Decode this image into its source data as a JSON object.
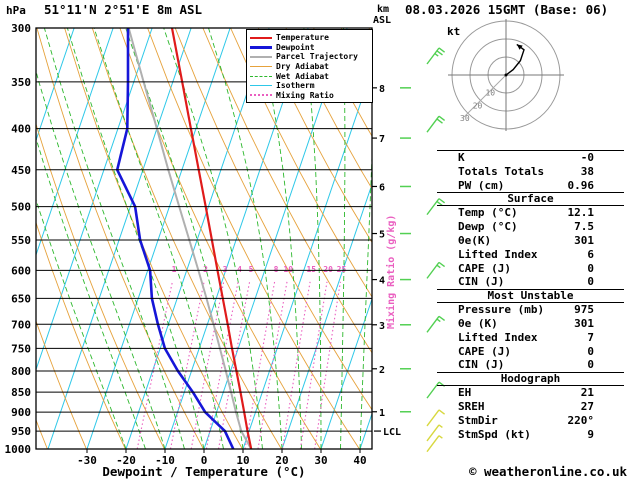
{
  "header": {
    "pressure_unit": "hPa",
    "station": "51°11'N 2°51'E 8m ASL",
    "height_km": "km",
    "height_asl": "ASL",
    "datetime": "08.03.2026 15GMT (Base: 06)"
  },
  "labels": {
    "mixing_axis": "Mixing Ratio (g/kg)",
    "x_axis": "Dewpoint / Temperature (°C)"
  },
  "footer": {
    "credit": "© weatheronline.co.uk"
  },
  "legend": {
    "items": [
      {
        "label": "Temperature",
        "color": "#e01b1b",
        "style": "solid",
        "width": 2
      },
      {
        "label": "Dewpoint",
        "color": "#1616d8",
        "style": "solid",
        "width": 3
      },
      {
        "label": "Parcel Trajectory",
        "color": "#b0b0b0",
        "style": "solid",
        "width": 2
      },
      {
        "label": "Dry Adiabat",
        "color": "#e6a23c",
        "style": "solid",
        "width": 1
      },
      {
        "label": "Wet Adiabat",
        "color": "#2db82d",
        "style": "dashed",
        "width": 1
      },
      {
        "label": "Isotherm",
        "color": "#2ec8e8",
        "style": "solid",
        "width": 1
      },
      {
        "label": "Mixing Ratio",
        "color": "#ea5fc0",
        "style": "dotted",
        "width": 2
      }
    ]
  },
  "stats": {
    "rows": [
      {
        "label": "K",
        "value": "-0"
      },
      {
        "label": "Totals Totals",
        "value": "38"
      },
      {
        "label": "PW (cm)",
        "value": "0.96"
      },
      {
        "header": "Surface"
      },
      {
        "label": "Temp (°C)",
        "value": "12.1"
      },
      {
        "label": "Dewp (°C)",
        "value": "7.5"
      },
      {
        "label": "θe(K)",
        "value": "301"
      },
      {
        "label": "Lifted Index",
        "value": "6"
      },
      {
        "label": "CAPE (J)",
        "value": "0"
      },
      {
        "label": "CIN (J)",
        "value": "0"
      },
      {
        "header": "Most Unstable"
      },
      {
        "label": "Pressure (mb)",
        "value": "975"
      },
      {
        "label": "θe (K)",
        "value": "301"
      },
      {
        "label": "Lifted Index",
        "value": "7"
      },
      {
        "label": "CAPE (J)",
        "value": "0"
      },
      {
        "label": "CIN (J)",
        "value": "0"
      },
      {
        "header": "Hodograph"
      },
      {
        "label": "EH",
        "value": "21"
      },
      {
        "label": "SREH",
        "value": "27"
      },
      {
        "label": "StmDir",
        "value": "220°"
      },
      {
        "label": "StmSpd (kt)",
        "value": "9"
      }
    ]
  },
  "chart_data": {
    "type": "skewt-log-p-sounding",
    "title": "51°11'N 2°51'E 8m ASL",
    "valid": "08.03.2026 15GMT (Base: 06)",
    "pressure_ticks_hpa": [
      300,
      350,
      400,
      450,
      500,
      550,
      600,
      650,
      700,
      750,
      800,
      850,
      900,
      950,
      1000
    ],
    "temp_ticks_c": [
      -30,
      -20,
      -10,
      0,
      10,
      20,
      30,
      40
    ],
    "km_ticks": [
      1,
      2,
      3,
      4,
      5,
      6,
      7,
      8
    ],
    "km_pressures": {
      "1": 899,
      "2": 795,
      "3": 701,
      "4": 616,
      "5": 540,
      "6": 472,
      "7": 411,
      "8": 356
    },
    "mixing_ratio_gkg": [
      1,
      2,
      3,
      4,
      5,
      8,
      10,
      15,
      20,
      25
    ],
    "sounding": {
      "pressure_hpa": [
        1000,
        950,
        900,
        850,
        800,
        750,
        700,
        650,
        600,
        550,
        500,
        450,
        400,
        350,
        300
      ],
      "temperature_c": [
        12.1,
        9.6,
        7.1,
        4.4,
        1.5,
        -1.6,
        -4.8,
        -8.3,
        -12.1,
        -16.2,
        -20.7,
        -25.7,
        -31.3,
        -37.6,
        -44.9
      ],
      "dewpoint_c": [
        7.5,
        3.8,
        -2.9,
        -7.8,
        -13.5,
        -18.8,
        -22.7,
        -26.5,
        -29.4,
        -34.6,
        -38.8,
        -46.6,
        -47.6,
        -51.5,
        -56.2
      ],
      "parcel_c": [
        12.1,
        8.0,
        5.0,
        2.0,
        -1.2,
        -4.7,
        -8.4,
        -12.5,
        -17.0,
        -22.0,
        -27.5,
        -33.5,
        -40.0,
        -47.5,
        -56.0
      ]
    },
    "lcl": {
      "pressure_hpa": 950,
      "label": "LCL"
    },
    "wind_barbs": [
      {
        "pressure_hpa": 325,
        "kt": 25,
        "color": "green"
      },
      {
        "pressure_hpa": 395,
        "kt": 20,
        "color": "green"
      },
      {
        "pressure_hpa": 500,
        "kt": 20,
        "color": "green"
      },
      {
        "pressure_hpa": 600,
        "kt": 15,
        "color": "green"
      },
      {
        "pressure_hpa": 700,
        "kt": 15,
        "color": "green"
      },
      {
        "pressure_hpa": 845,
        "kt": 10,
        "color": "green"
      },
      {
        "pressure_hpa": 915,
        "kt": 10,
        "color": "yellow"
      },
      {
        "pressure_hpa": 955,
        "kt": 9,
        "color": "yellow"
      },
      {
        "pressure_hpa": 985,
        "kt": 9,
        "color": "yellow"
      }
    ],
    "hodograph": {
      "unit": "kt",
      "rings_kt": [
        10,
        20,
        30
      ],
      "trace_u_kt": [
        0,
        4,
        8,
        10,
        6
      ],
      "trace_v_kt": [
        0,
        3,
        8,
        14,
        17
      ]
    },
    "colors": {
      "temperature": "#e01b1b",
      "dewpoint": "#1616d8",
      "parcel": "#b0b0b0",
      "dry_adiabat": "#e6a23c",
      "wet_adiabat": "#2db82d",
      "isotherm": "#2ec8e8",
      "mixing_ratio": "#ea5fc0",
      "barb_green": "#52d052",
      "barb_yellow": "#d8d840"
    }
  }
}
